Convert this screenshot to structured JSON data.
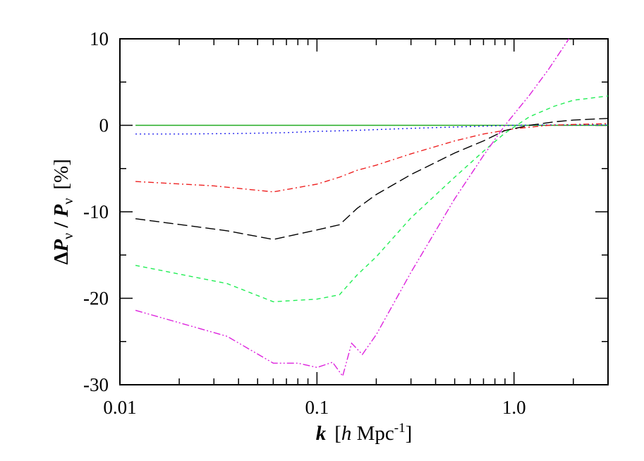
{
  "chart_data": {
    "type": "line",
    "xscale": "log",
    "xlim": [
      0.01,
      3.0
    ],
    "ylim": [
      -30,
      10
    ],
    "xticks": [
      {
        "value": 0.01,
        "label": "0.01"
      },
      {
        "value": 0.1,
        "label": "0.1"
      },
      {
        "value": 1.0,
        "label": "1.0"
      }
    ],
    "yticks": [
      {
        "value": 10,
        "label": "10"
      },
      {
        "value": 0,
        "label": "0"
      },
      {
        "value": -10,
        "label": "-10"
      },
      {
        "value": -20,
        "label": "-20"
      },
      {
        "value": -30,
        "label": "-30"
      }
    ],
    "xlabel": {
      "var": "k",
      "open": "[",
      "h": "h",
      "unit": " Mpc",
      "sup": "-1",
      "close": "]"
    },
    "ylabel": {
      "delta": "Δ",
      "P1": "P",
      "sub1": "ν",
      "slash": " / ",
      "P2": "P",
      "sub2": "ν",
      "unit": "[%]"
    },
    "grid": false,
    "legend": "none",
    "series": [
      {
        "color": "#22aa22",
        "dash": "none",
        "x": [
          0.012,
          0.03,
          0.1,
          0.3,
          1.0,
          3.0
        ],
        "y": [
          0,
          0,
          0,
          0,
          0,
          0
        ]
      },
      {
        "color": "#2222ee",
        "dash": "2,4",
        "x": [
          0.012,
          0.02,
          0.04,
          0.07,
          0.1,
          0.15,
          0.2,
          0.3,
          0.5,
          0.7,
          1.0,
          1.5,
          2.0,
          3.0
        ],
        "y": [
          -1.0,
          -1.0,
          -0.95,
          -0.85,
          -0.7,
          -0.6,
          -0.5,
          -0.35,
          -0.2,
          -0.1,
          0,
          0.05,
          0.05,
          0.05
        ]
      },
      {
        "color": "#ee2222",
        "dash": "8,4,2,4",
        "x": [
          0.012,
          0.03,
          0.06,
          0.1,
          0.13,
          0.16,
          0.2,
          0.3,
          0.5,
          0.7,
          1.0,
          1.5,
          2.0,
          3.0
        ],
        "y": [
          -6.5,
          -7.0,
          -7.7,
          -6.8,
          -6.0,
          -5.2,
          -4.6,
          -3.3,
          -1.8,
          -1.0,
          -0.4,
          0.0,
          0.1,
          0.2
        ]
      },
      {
        "color": "#000000",
        "dash": "14,6",
        "x": [
          0.012,
          0.035,
          0.06,
          0.1,
          0.13,
          0.16,
          0.2,
          0.3,
          0.5,
          0.7,
          0.9,
          1.2,
          1.6,
          2.0,
          3.0
        ],
        "y": [
          -10.8,
          -12.2,
          -13.2,
          -12.1,
          -11.5,
          -9.6,
          -8.0,
          -5.7,
          -3.2,
          -1.8,
          -0.6,
          0.0,
          0.4,
          0.6,
          0.8
        ]
      },
      {
        "color": "#22ee55",
        "dash": "6,5",
        "x": [
          0.012,
          0.035,
          0.06,
          0.1,
          0.13,
          0.16,
          0.2,
          0.3,
          0.5,
          0.7,
          0.9,
          1.2,
          1.6,
          2.0,
          3.0
        ],
        "y": [
          -16.2,
          -18.3,
          -20.4,
          -20.1,
          -19.6,
          -17.3,
          -15.2,
          -10.7,
          -6.0,
          -3.0,
          -0.9,
          1.0,
          2.2,
          2.9,
          3.4
        ]
      },
      {
        "color": "#dd22dd",
        "dash": "10,3,2,3,2,3",
        "x": [
          0.012,
          0.035,
          0.06,
          0.08,
          0.1,
          0.12,
          0.135,
          0.15,
          0.17,
          0.2,
          0.3,
          0.5,
          0.7,
          0.9,
          1.2,
          1.5,
          1.9
        ],
        "y": [
          -21.4,
          -24.4,
          -27.5,
          -27.5,
          -28.0,
          -27.4,
          -29.0,
          -25.2,
          -26.5,
          -24.2,
          -17.0,
          -8.5,
          -3.5,
          0.0,
          3.5,
          6.5,
          10.0
        ]
      }
    ]
  }
}
